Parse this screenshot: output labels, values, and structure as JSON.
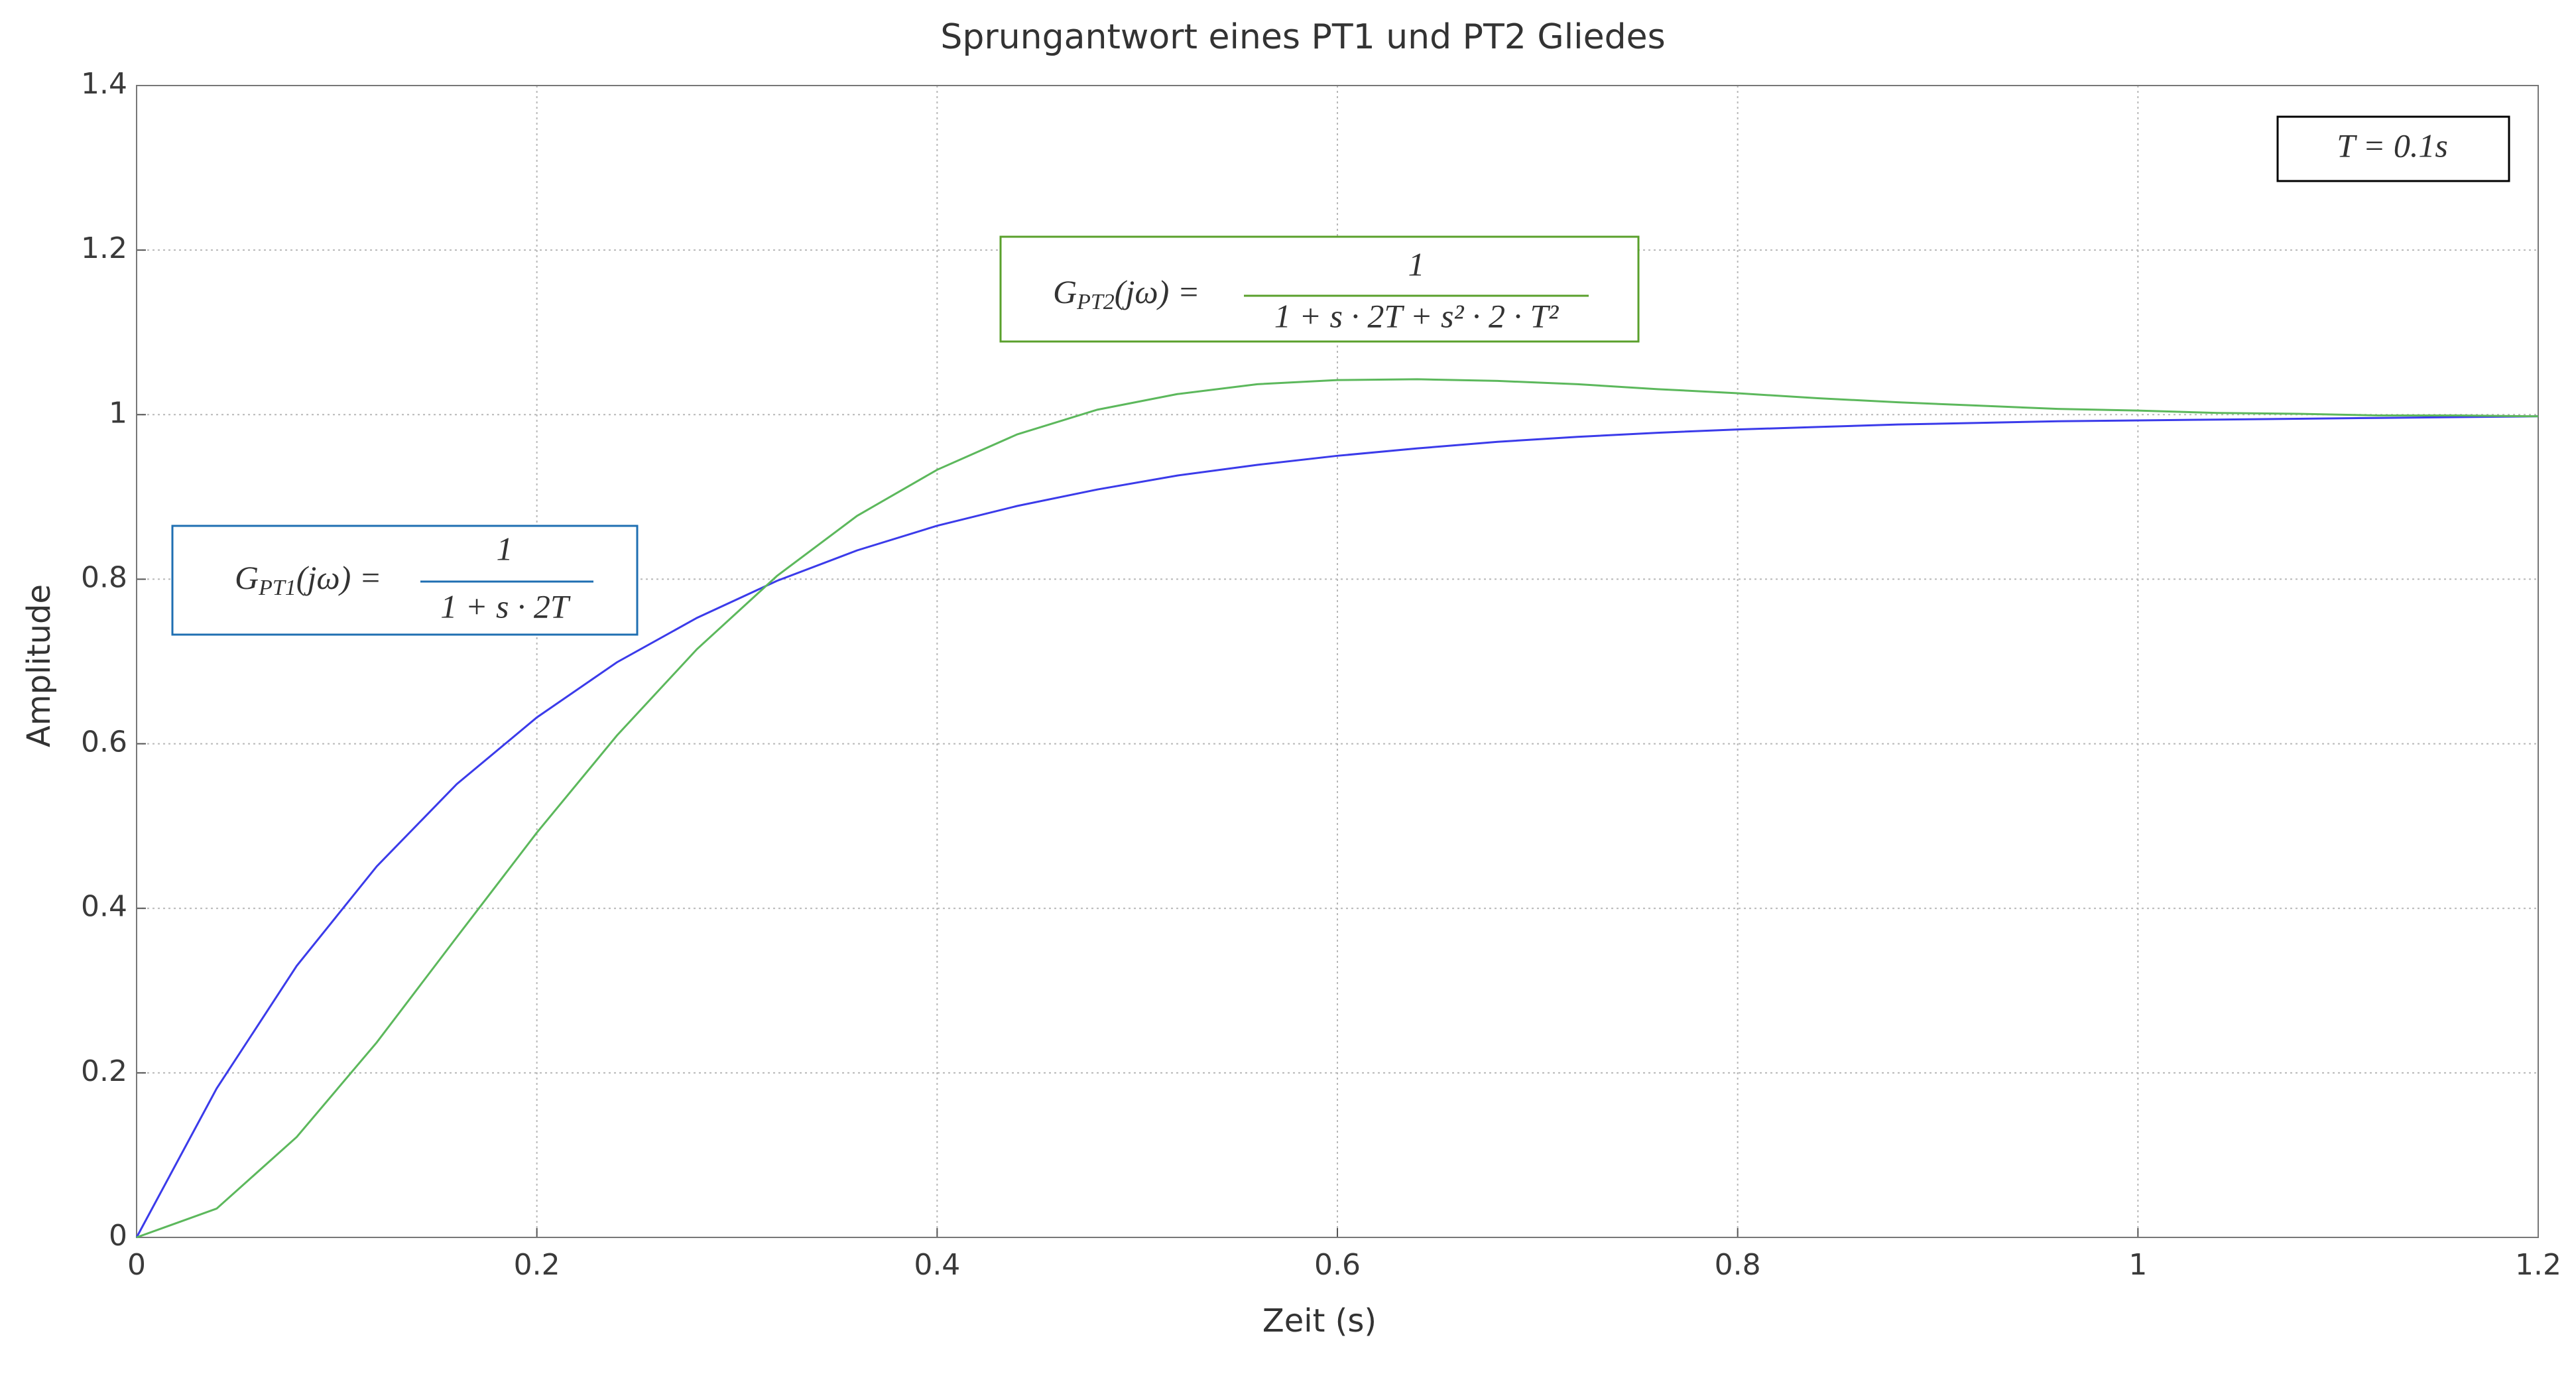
{
  "chart_data": {
    "type": "line",
    "title": "Sprungantwort eines PT1 und PT2 Gliedes",
    "xlabel": "Zeit (s)",
    "ylabel": "Amplitude",
    "x": [
      0,
      0.04,
      0.08,
      0.12,
      0.16,
      0.2,
      0.24,
      0.28,
      0.32,
      0.36,
      0.4,
      0.44,
      0.48,
      0.52,
      0.56,
      0.6,
      0.64,
      0.68,
      0.72,
      0.76,
      0.8,
      0.84,
      0.88,
      0.92,
      0.96,
      1.0,
      1.04,
      1.08,
      1.12,
      1.16,
      1.2
    ],
    "series": [
      {
        "name": "PT1",
        "color": "#3b3bea",
        "values": [
          0,
          0.181,
          0.33,
          0.451,
          0.551,
          0.632,
          0.699,
          0.753,
          0.798,
          0.835,
          0.865,
          0.889,
          0.909,
          0.926,
          0.939,
          0.95,
          0.959,
          0.967,
          0.973,
          0.978,
          0.982,
          0.985,
          0.988,
          0.99,
          0.992,
          0.993,
          0.994,
          0.995,
          0.996,
          0.997,
          0.998
        ]
      },
      {
        "name": "PT2",
        "color": "#5cb85c",
        "values": [
          0,
          0.035,
          0.122,
          0.237,
          0.365,
          0.492,
          0.61,
          0.715,
          0.804,
          0.877,
          0.933,
          0.976,
          1.006,
          1.025,
          1.037,
          1.042,
          1.043,
          1.041,
          1.037,
          1.031,
          1.026,
          1.02,
          1.015,
          1.011,
          1.007,
          1.005,
          1.002,
          1.001,
          0.999,
          0.999,
          0.998
        ]
      }
    ],
    "xlim": [
      0,
      1.2
    ],
    "xticks": [
      0,
      0.2,
      0.4,
      0.6,
      0.8,
      1,
      1.2
    ],
    "ylim": [
      0,
      1.4
    ],
    "yticks": [
      0,
      0.2,
      0.4,
      0.6,
      0.8,
      1,
      1.2,
      1.4
    ],
    "grid": true,
    "annotations": [
      {
        "lhs_main": "G",
        "lhs_sub": "PT1",
        "lhs_rest": "(jω) =",
        "numerator": "1",
        "denominator": "1 + s · 2T",
        "color": "#1f6fb2"
      },
      {
        "lhs_main": "G",
        "lhs_sub": "PT2",
        "lhs_rest": "(jω) =",
        "numerator": "1",
        "denominator": "1 + s · 2T + s² · 2 · T²",
        "color": "#5aa02c"
      },
      {
        "text": "T = 0.1s",
        "color": "#000000"
      }
    ]
  }
}
